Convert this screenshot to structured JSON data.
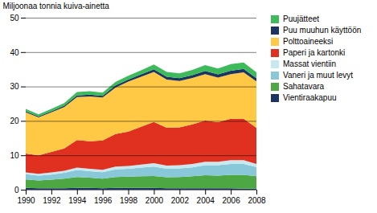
{
  "chart_data": {
    "type": "area",
    "stacked": true,
    "ylabel": "Miljoonaa tonnia kuiva-ainetta",
    "x": [
      1990,
      1991,
      1992,
      1993,
      1994,
      1995,
      1996,
      1997,
      1998,
      1999,
      2000,
      2001,
      2002,
      2003,
      2004,
      2005,
      2006,
      2007,
      2008
    ],
    "xlim": [
      1990,
      2008
    ],
    "xticks": [
      1990,
      1992,
      1994,
      1996,
      1998,
      2000,
      2002,
      2004,
      2006,
      2008
    ],
    "ylim": [
      0,
      50
    ],
    "yticks": [
      0,
      10,
      20,
      30,
      40,
      50
    ],
    "grid": true,
    "legend": "right",
    "series": [
      {
        "name": "Vientiraakapuu",
        "color": "#1c3461",
        "values": [
          0.5,
          0.4,
          0.4,
          0.4,
          0.5,
          0.5,
          0.4,
          0.5,
          0.5,
          0.5,
          0.5,
          0.4,
          0.4,
          0.4,
          0.4,
          0.4,
          0.4,
          0.3,
          0.3
        ]
      },
      {
        "name": "Sahatavara",
        "color": "#4da843",
        "values": [
          2.5,
          2.3,
          2.5,
          2.8,
          3.2,
          3.0,
          2.8,
          3.2,
          3.3,
          3.4,
          3.5,
          3.2,
          3.3,
          3.5,
          3.8,
          3.7,
          3.9,
          4.0,
          3.6
        ]
      },
      {
        "name": "Vaneri ja muut levyt",
        "color": "#88c8d8",
        "values": [
          1.5,
          1.4,
          1.5,
          1.7,
          2.0,
          1.9,
          1.9,
          2.2,
          2.3,
          2.5,
          2.7,
          2.5,
          2.5,
          2.6,
          2.9,
          3.0,
          3.2,
          3.2,
          2.7
        ]
      },
      {
        "name": "Massat vientiin",
        "color": "#c8e8f0",
        "values": [
          0.5,
          0.5,
          0.6,
          0.6,
          0.7,
          0.7,
          0.7,
          0.8,
          0.8,
          0.9,
          1.0,
          0.9,
          0.9,
          1.0,
          1.0,
          1.0,
          1.1,
          1.1,
          0.9
        ]
      },
      {
        "name": "Paperi ja kartonki",
        "color": "#e03020",
        "values": [
          5.5,
          5.4,
          6.0,
          6.5,
          8.0,
          8.0,
          8.5,
          9.5,
          10.0,
          11.0,
          12.0,
          11.0,
          11.0,
          11.5,
          12.0,
          11.5,
          12.0,
          12.0,
          10.5
        ]
      },
      {
        "name": "Polttoaineeksi",
        "color": "#ffc845",
        "values": [
          12.0,
          11.0,
          11.5,
          12.0,
          12.5,
          13.0,
          12.5,
          13.5,
          14.5,
          14.5,
          14.5,
          14.0,
          13.5,
          13.5,
          13.5,
          13.0,
          13.0,
          13.5,
          13.5
        ]
      },
      {
        "name": "Puu muuhun käyttöön",
        "color": "#1c3461",
        "values": [
          0.3,
          0.3,
          0.3,
          0.4,
          0.5,
          0.5,
          0.5,
          0.6,
          0.6,
          0.7,
          0.8,
          0.8,
          0.8,
          0.8,
          0.9,
          0.9,
          1.0,
          1.0,
          0.9
        ]
      },
      {
        "name": "Puujätteet",
        "color": "#3dba5a",
        "values": [
          0.7,
          0.6,
          0.7,
          0.8,
          1.0,
          1.0,
          0.9,
          1.0,
          1.1,
          1.2,
          1.4,
          1.4,
          1.4,
          1.5,
          1.7,
          1.7,
          1.9,
          1.9,
          1.7
        ]
      }
    ]
  }
}
